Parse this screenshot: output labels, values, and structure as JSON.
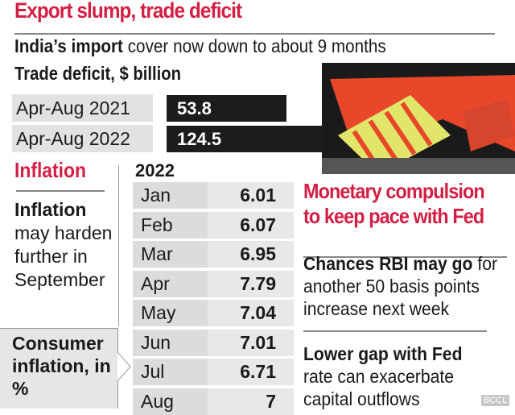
{
  "title": "Export slump, trade deficit",
  "subtitle_bold": "India’s import",
  "subtitle_rest": " cover now down to about 9 months",
  "chart_data": [
    {
      "type": "bar",
      "title": "Trade deficit, $ billion",
      "categories": [
        "Apr-Aug 2021",
        "Apr-Aug 2022"
      ],
      "values": [
        53.8,
        124.5
      ],
      "value_labels": [
        "53.8",
        "124.5"
      ],
      "orientation": "horizontal",
      "bar_color": "#1c1c1c"
    },
    {
      "type": "table",
      "title": "2022",
      "caption": "Consumer inflation, in %",
      "categories": [
        "Jan",
        "Feb",
        "Mar",
        "Apr",
        "May",
        "Jun",
        "Jul",
        "Aug"
      ],
      "values": [
        6.01,
        6.07,
        6.95,
        7.79,
        7.04,
        7.01,
        6.71,
        7
      ],
      "value_labels": [
        "6.01",
        "6.07",
        "6.95",
        "7.79",
        "7.04",
        "7.01",
        "6.71",
        "7"
      ]
    }
  ],
  "inflation": {
    "heading": "Inflation",
    "note_bold": "Inflation",
    "note_rest": "may harden further in September",
    "caption": "Consumer inflation, in %"
  },
  "right": {
    "heading_line1": "Monetary compulsion",
    "heading_line2": "to keep pace with Fed",
    "p1_bold": "Chances RBI may go",
    "p1_rest1": " for",
    "p1_line2": "another 50 basis points",
    "p1_line3": "increase next week",
    "p2_bold": "Lower gap with Fed",
    "p2_line2": "rate can exacerbate",
    "p2_line3": "capital outflows"
  },
  "watermark": "BCCL",
  "colors": {
    "accent": "#d31f44",
    "bar": "#1c1c1c"
  }
}
